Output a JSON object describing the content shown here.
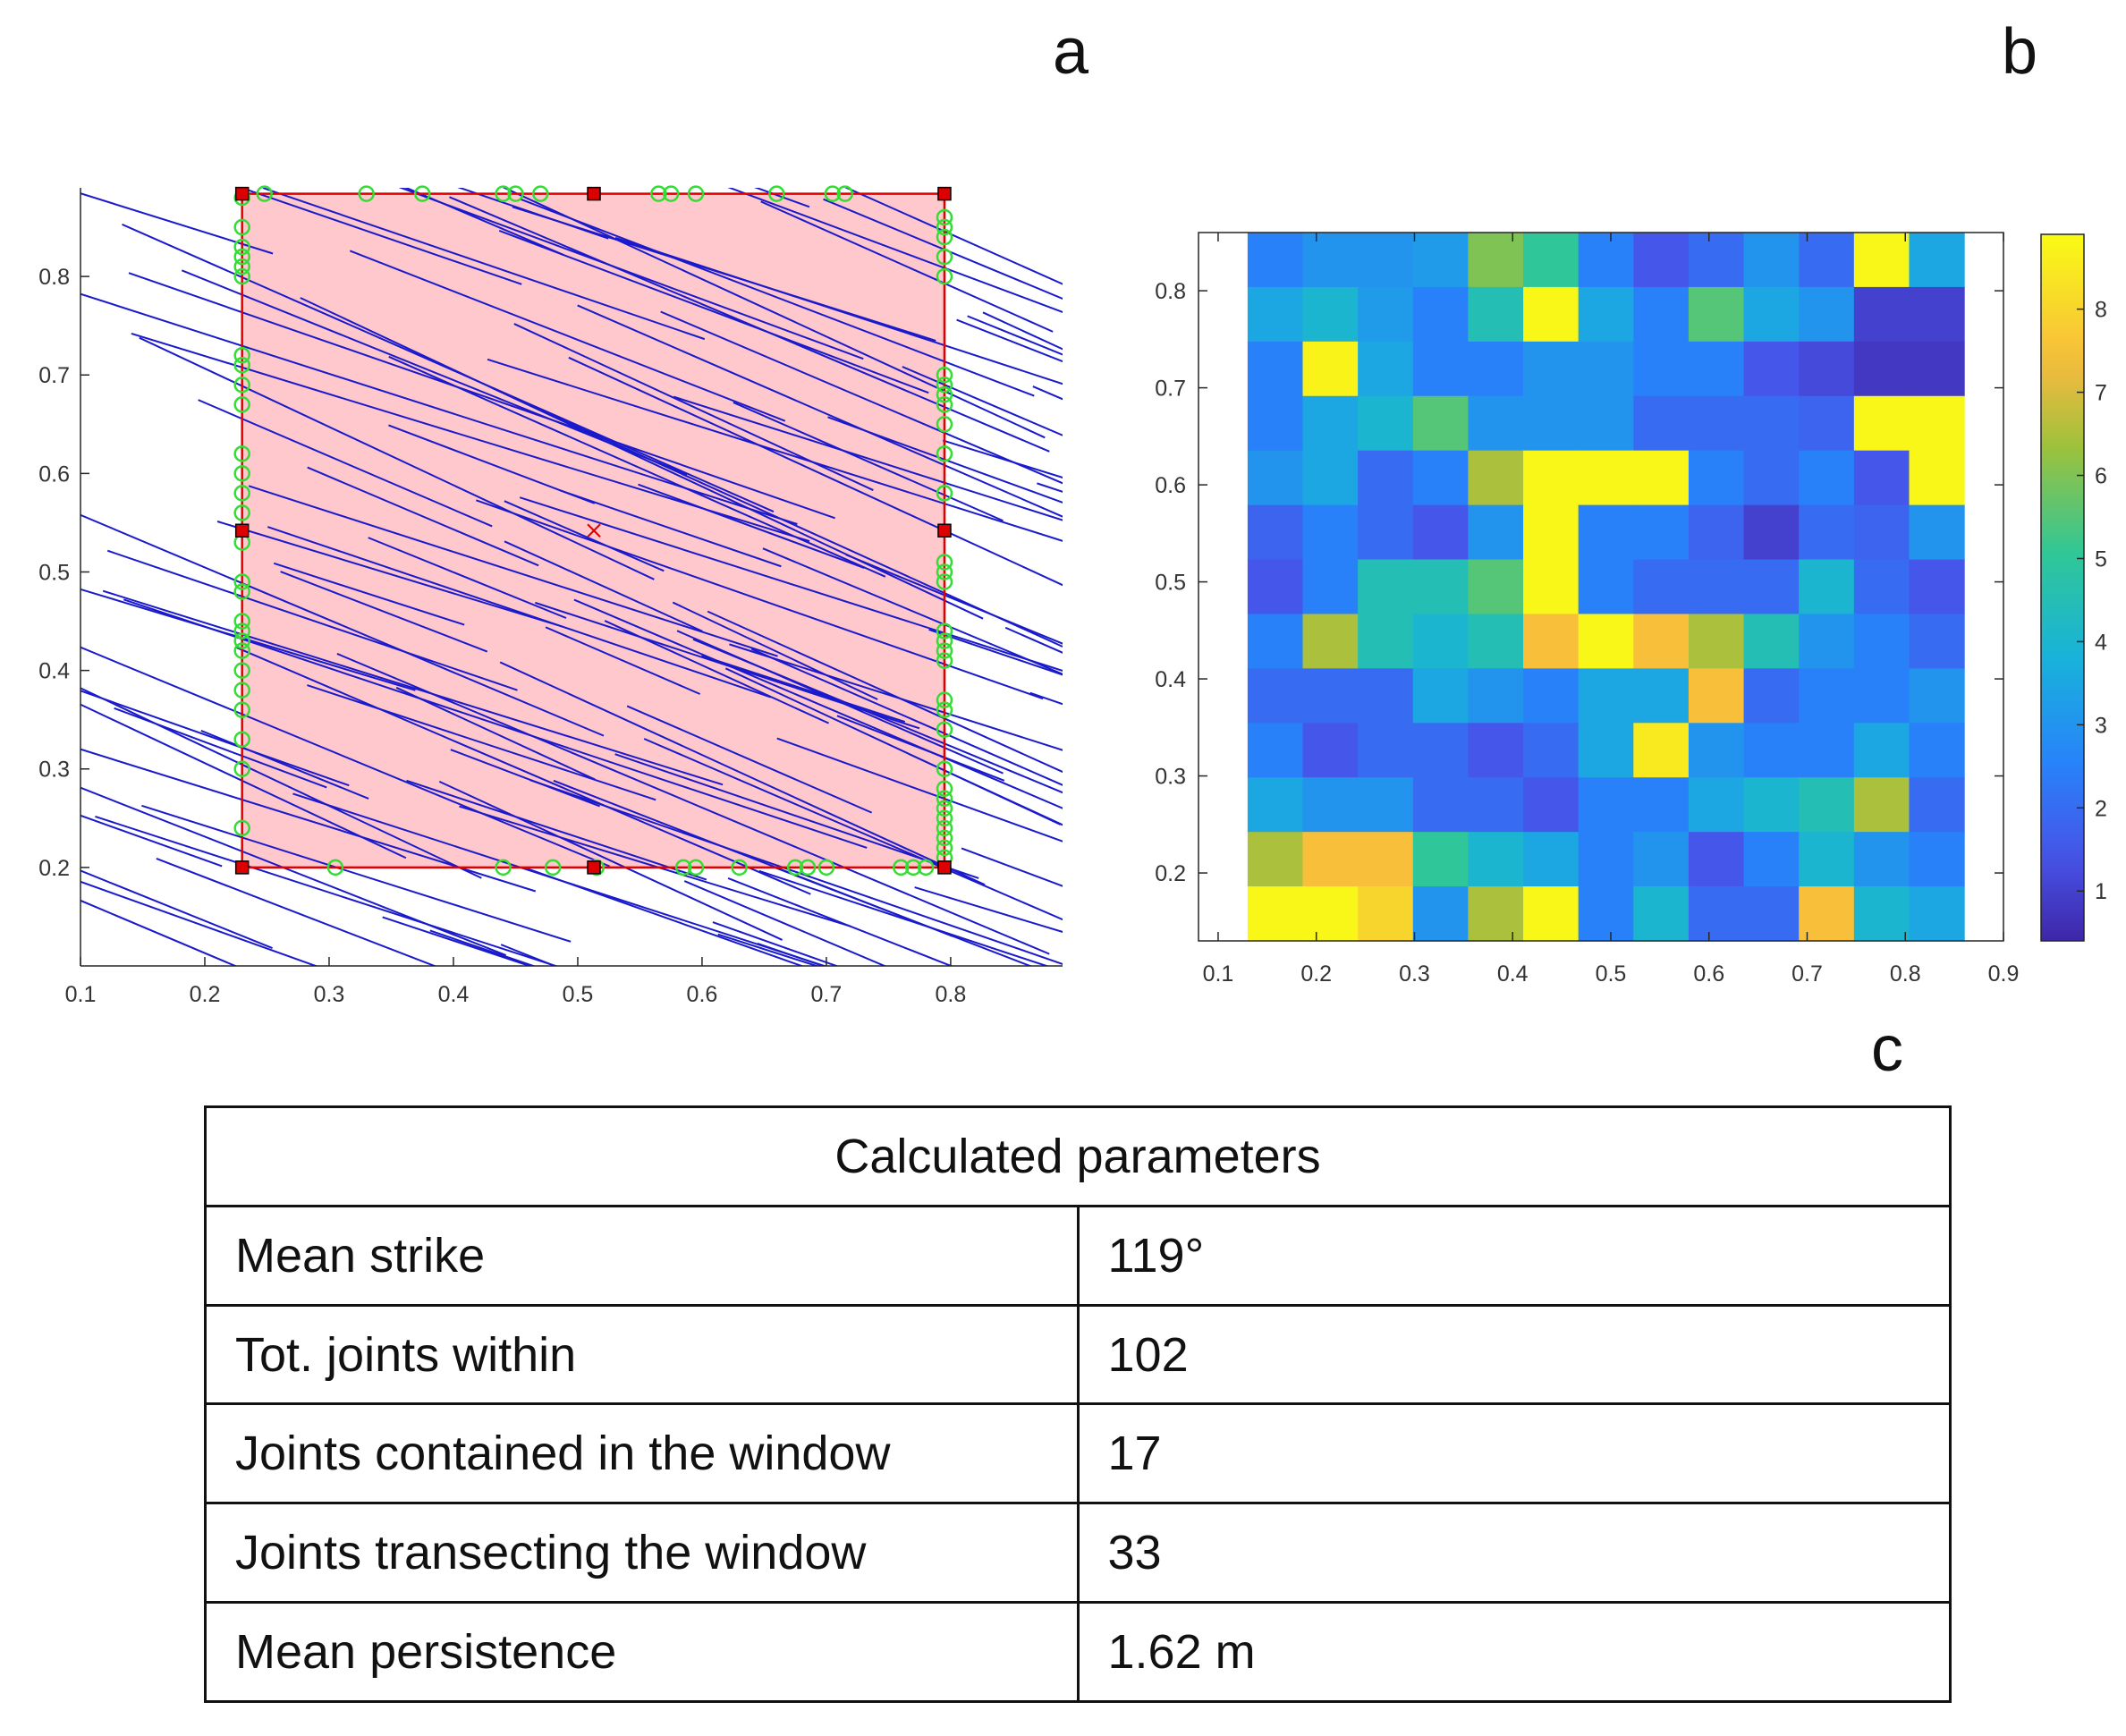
{
  "panel_labels": {
    "a": "a",
    "b": "b",
    "c": "c"
  },
  "colors": {
    "window_fill": "#ffc8cc",
    "window_edge": "#e00000",
    "joint_line": "#1a1acc",
    "intersection_marker": "#33dd33",
    "vertex_marker": "#dd0000"
  },
  "chart_data": [
    {
      "type": "line",
      "panel": "a",
      "xlim": [
        0.1,
        0.89
      ],
      "ylim": [
        0.1,
        0.89
      ],
      "x_ticks": [
        "0.1",
        "0.2",
        "0.3",
        "0.4",
        "0.5",
        "0.6",
        "0.7",
        "0.8"
      ],
      "y_ticks": [
        "0.2",
        "0.3",
        "0.4",
        "0.5",
        "0.6",
        "0.7",
        "0.8"
      ],
      "window": {
        "x": [
          0.23,
          0.795
        ],
        "y": [
          0.2,
          0.884
        ],
        "center": [
          0.513,
          0.542
        ]
      },
      "window_vertices": [
        [
          0.23,
          0.884
        ],
        [
          0.513,
          0.884
        ],
        [
          0.795,
          0.884
        ],
        [
          0.23,
          0.542
        ],
        [
          0.795,
          0.542
        ],
        [
          0.23,
          0.2
        ],
        [
          0.513,
          0.2
        ],
        [
          0.795,
          0.2
        ]
      ],
      "intersections_top_x": [
        0.248,
        0.33,
        0.375,
        0.44,
        0.45,
        0.47,
        0.565,
        0.575,
        0.595,
        0.66,
        0.705,
        0.715
      ],
      "intersections_bottom_x": [
        0.305,
        0.44,
        0.48,
        0.515,
        0.585,
        0.595,
        0.63,
        0.675,
        0.685,
        0.7,
        0.76,
        0.77,
        0.78
      ],
      "intersections_left_y": [
        0.24,
        0.3,
        0.33,
        0.36,
        0.38,
        0.4,
        0.42,
        0.43,
        0.44,
        0.45,
        0.48,
        0.49,
        0.53,
        0.56,
        0.58,
        0.6,
        0.62,
        0.67,
        0.69,
        0.71,
        0.72,
        0.8,
        0.81,
        0.82,
        0.83,
        0.85,
        0.88
      ],
      "intersections_right_y": [
        0.21,
        0.22,
        0.23,
        0.24,
        0.25,
        0.26,
        0.27,
        0.28,
        0.3,
        0.34,
        0.36,
        0.37,
        0.41,
        0.42,
        0.43,
        0.44,
        0.49,
        0.5,
        0.51,
        0.58,
        0.62,
        0.65,
        0.67,
        0.68,
        0.69,
        0.7,
        0.8,
        0.82,
        0.84,
        0.85,
        0.86
      ]
    },
    {
      "type": "heatmap",
      "panel": "b",
      "xlim": [
        0.08,
        0.9
      ],
      "ylim": [
        0.13,
        0.86
      ],
      "x_ticks": [
        "0.1",
        "0.2",
        "0.3",
        "0.4",
        "0.5",
        "0.6",
        "0.7",
        "0.8",
        "0.9"
      ],
      "y_ticks": [
        "0.2",
        "0.3",
        "0.4",
        "0.5",
        "0.6",
        "0.7",
        "0.8"
      ],
      "x_range": [
        0.13,
        0.86
      ],
      "y_range": [
        0.13,
        0.86
      ],
      "colorbar": {
        "min": 0.4,
        "max": 8.9,
        "ticks": [
          "1",
          "2",
          "3",
          "4",
          "5",
          "6",
          "7",
          "8"
        ]
      },
      "rows": [
        [
          2.5,
          3,
          3,
          3.2,
          6,
          5,
          2.5,
          1.5,
          2,
          3,
          2,
          8.8,
          3.5
        ],
        [
          3.5,
          4,
          3.2,
          2.5,
          4.5,
          8.8,
          3.5,
          2.5,
          5.5,
          3.5,
          3,
          1,
          1
        ],
        [
          2.5,
          8.7,
          3.5,
          2.5,
          2.5,
          3,
          3,
          2.5,
          2.5,
          1.5,
          1.2,
          0.8,
          0.8
        ],
        [
          2.5,
          3.5,
          4,
          5.5,
          3,
          3,
          3,
          2,
          2,
          2,
          1.8,
          8.8,
          8.8
        ],
        [
          3,
          3.5,
          2,
          2.5,
          6.5,
          8.8,
          8.8,
          8.8,
          2.5,
          2,
          2.5,
          1.5,
          8.8
        ],
        [
          1.8,
          2.5,
          2,
          1.5,
          3,
          8.8,
          2.5,
          2.5,
          1.8,
          1,
          2,
          1.8,
          3
        ],
        [
          1.5,
          2.5,
          4.5,
          4.5,
          5.5,
          8.8,
          2.5,
          2,
          2,
          2,
          4,
          2,
          1.5
        ],
        [
          2.5,
          6.5,
          4.5,
          4,
          4.5,
          7.5,
          8.8,
          7.5,
          6.5,
          4.5,
          3,
          2.5,
          2
        ],
        [
          2,
          2,
          2,
          3.5,
          3,
          2.5,
          3.5,
          3.5,
          7.5,
          2,
          2.5,
          2.5,
          3
        ],
        [
          2.5,
          1.5,
          2,
          2,
          1.5,
          2,
          3.5,
          8.5,
          3,
          2.5,
          2.5,
          3.5,
          2.5
        ],
        [
          3.5,
          3,
          3,
          2,
          2,
          1.5,
          2.5,
          2.5,
          3.5,
          4,
          4.5,
          6.5,
          2
        ],
        [
          6.5,
          7.5,
          7.5,
          5,
          4,
          3.5,
          2.5,
          3,
          1.5,
          2.5,
          4,
          3,
          2.5
        ],
        [
          8.8,
          8.8,
          8,
          3,
          6.5,
          8.8,
          2.5,
          4,
          2,
          2,
          7.5,
          4,
          3.5
        ]
      ]
    }
  ],
  "table": {
    "header": "Calculated parameters",
    "rows": [
      {
        "label": "Mean strike",
        "value": "119°"
      },
      {
        "label": "Tot. joints within",
        "value": "102"
      },
      {
        "label": "Joints contained in the window",
        "value": "17"
      },
      {
        "label": "Joints transecting the window",
        "value": "33"
      },
      {
        "label": "Mean persistence",
        "value": "1.62 m"
      }
    ]
  }
}
